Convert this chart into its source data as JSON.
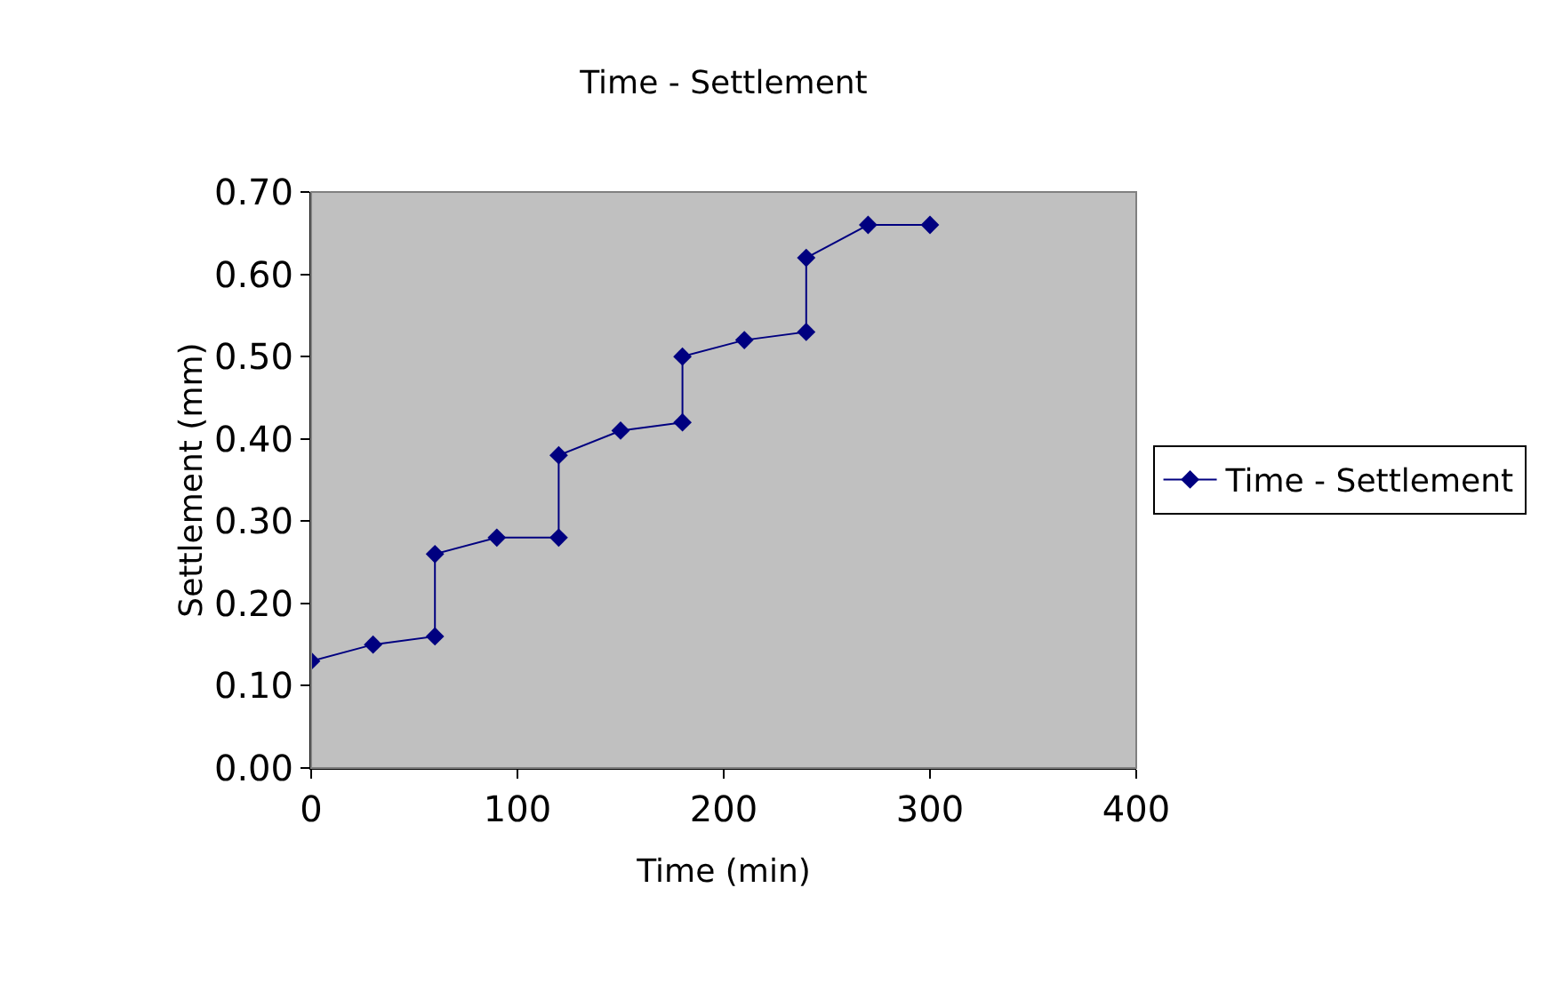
{
  "chart_data": {
    "type": "line",
    "title": "Time - Settlement",
    "xlabel": "Time (min)",
    "ylabel": "Settlement (mm)",
    "x": [
      0,
      30,
      60,
      60,
      90,
      120,
      120,
      150,
      180,
      180,
      210,
      240,
      240,
      270,
      300
    ],
    "series": [
      {
        "name": "Time - Settlement",
        "color": "#000080",
        "values": [
          0.13,
          0.15,
          0.16,
          0.26,
          0.28,
          0.28,
          0.38,
          0.41,
          0.42,
          0.5,
          0.52,
          0.53,
          0.62,
          0.66,
          0.66
        ]
      }
    ],
    "xlim": [
      0,
      400
    ],
    "xticks": [
      0,
      100,
      200,
      300,
      400
    ],
    "ylim": [
      0,
      0.7
    ],
    "yticks": [
      {
        "value": 0,
        "label": "0.00"
      },
      {
        "value": 0.1,
        "label": "0.10"
      },
      {
        "value": 0.2,
        "label": "0.20"
      },
      {
        "value": 0.3,
        "label": "0.30"
      },
      {
        "value": 0.4,
        "label": "0.40"
      },
      {
        "value": 0.5,
        "label": "0.50"
      },
      {
        "value": 0.6,
        "label": "0.60"
      },
      {
        "value": 0.7,
        "label": "0.70"
      }
    ],
    "grid": false,
    "legend": "right",
    "marker": "diamond",
    "line_style": "solid"
  }
}
